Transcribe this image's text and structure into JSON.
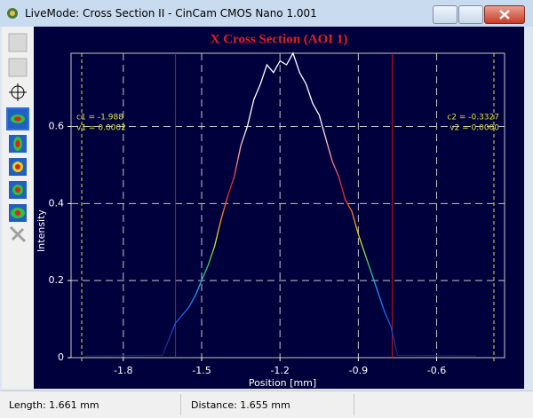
{
  "window": {
    "title": "LiveMode: Cross Section II - CinCam CMOS Nano 1.001"
  },
  "chart_data": {
    "type": "line",
    "title": "X Cross Section (AOI 1)",
    "x_label": "Position [mm]",
    "y_label": "Intensity",
    "x": [
      -1.95,
      -1.8,
      -1.65,
      -1.6,
      -1.575,
      -1.55,
      -1.525,
      -1.5,
      -1.475,
      -1.45,
      -1.425,
      -1.4,
      -1.375,
      -1.35,
      -1.325,
      -1.3,
      -1.275,
      -1.25,
      -1.225,
      -1.2,
      -1.175,
      -1.15,
      -1.125,
      -1.1,
      -1.075,
      -1.05,
      -1.025,
      -1.0,
      -0.975,
      -0.95,
      -0.925,
      -0.9,
      -0.875,
      -0.85,
      -0.825,
      -0.8,
      -0.775,
      -0.75,
      -0.6,
      -0.45
    ],
    "values": [
      0.004,
      0.005,
      0.006,
      0.09,
      0.11,
      0.13,
      0.16,
      0.2,
      0.24,
      0.29,
      0.36,
      0.42,
      0.47,
      0.55,
      0.6,
      0.67,
      0.71,
      0.76,
      0.74,
      0.77,
      0.76,
      0.79,
      0.74,
      0.71,
      0.66,
      0.63,
      0.57,
      0.51,
      0.47,
      0.41,
      0.38,
      0.32,
      0.27,
      0.22,
      0.17,
      0.12,
      0.08,
      0.006,
      0.005,
      0.004
    ],
    "color_stops": [
      {
        "value": 0,
        "color": "#102050"
      },
      {
        "value": 0.08,
        "color": "#1e50e0"
      },
      {
        "value": 0.18,
        "color": "#20a0ff"
      },
      {
        "value": 0.24,
        "color": "#30d060"
      },
      {
        "value": 0.3,
        "color": "#e0e020"
      },
      {
        "value": 0.36,
        "color": "#ff9020"
      },
      {
        "value": 0.44,
        "color": "#e02020"
      },
      {
        "value": 0.52,
        "color": "#ff9090"
      },
      {
        "value": 0.6,
        "color": "#ffffff"
      }
    ],
    "xlim": [
      -2.0,
      -0.34
    ],
    "ylim": [
      0,
      0.79
    ],
    "xticks": [
      -1.8,
      -1.5,
      -1.2,
      -0.9,
      -0.6
    ],
    "yticks": [
      0,
      0.2,
      0.4,
      0.6
    ],
    "grid": true,
    "cursors": [
      -1.6,
      -0.77
    ],
    "annotations": [
      "c1 = -1.988",
      "v1 = 0.0002",
      "c2 = -0.3327",
      "v2 = 0.0000"
    ]
  },
  "status": {
    "length": "Length: 1.661 mm",
    "distance": "Distance: 1.655 mm"
  }
}
